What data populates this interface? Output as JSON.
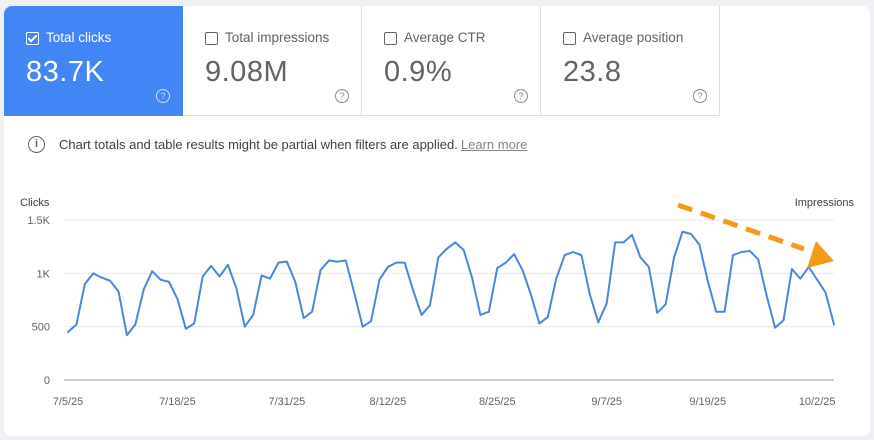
{
  "metrics": [
    {
      "label": "Total clicks",
      "value": "83.7K",
      "checked": true
    },
    {
      "label": "Total impressions",
      "value": "9.08M",
      "checked": false
    },
    {
      "label": "Average CTR",
      "value": "0.9%",
      "checked": false
    },
    {
      "label": "Average position",
      "value": "23.8",
      "checked": false
    }
  ],
  "notice": {
    "text": "Chart totals and table results might be partial when filters are applied.",
    "link": "Learn more"
  },
  "colors": {
    "accent": "#4285f4",
    "line": "#4a86dc",
    "arrow": "#f29a1a"
  },
  "chart_data": {
    "type": "line",
    "xlabel": "",
    "ylabel_left": "Clicks",
    "ylabel_right": "Impressions",
    "ylim": [
      0,
      1500
    ],
    "yticks": [
      0,
      500,
      1000,
      1500
    ],
    "ytick_labels": [
      "0",
      "500",
      "1K",
      "1.5K"
    ],
    "x_start": "7/5/25",
    "x_end": "10/3/25",
    "xtick_labels": [
      "7/5/25",
      "7/18/25",
      "7/31/25",
      "8/12/25",
      "8/25/25",
      "9/7/25",
      "9/19/25",
      "10/2/25"
    ],
    "xtick_days": [
      0,
      13,
      26,
      38,
      51,
      64,
      76,
      89
    ],
    "grid": true,
    "series": [
      {
        "values": [
          450,
          520,
          900,
          1000,
          960,
          930,
          830,
          420,
          520,
          850,
          1020,
          940,
          920,
          760,
          480,
          530,
          970,
          1070,
          970,
          1080,
          860,
          500,
          610,
          980,
          950,
          1100,
          1110,
          920,
          580,
          640,
          1030,
          1120,
          1110,
          1120,
          820,
          500,
          550,
          940,
          1060,
          1100,
          1100,
          840,
          610,
          700,
          1150,
          1230,
          1290,
          1220,
          960,
          610,
          640,
          1050,
          1100,
          1180,
          1030,
          800,
          530,
          590,
          950,
          1170,
          1200,
          1170,
          800,
          540,
          720,
          1290,
          1290,
          1360,
          1150,
          1060,
          630,
          710,
          1150,
          1390,
          1370,
          1270,
          930,
          640,
          640,
          1170,
          1200,
          1210,
          1130,
          790,
          490,
          560,
          1040,
          950,
          1060,
          940,
          820,
          520
        ]
      }
    ],
    "annotation": {
      "type": "arrow",
      "direction": "downward trend"
    }
  }
}
